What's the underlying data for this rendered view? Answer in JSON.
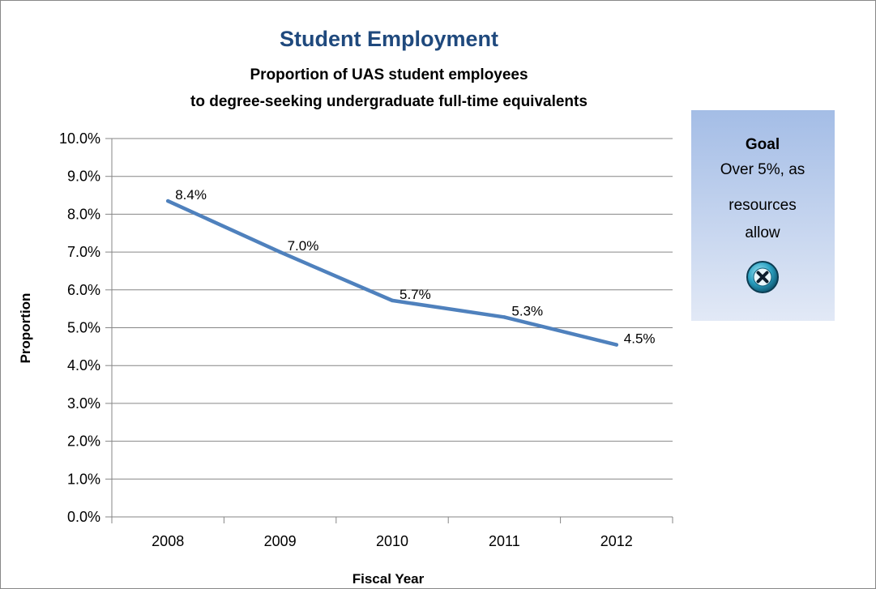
{
  "chart_data": {
    "type": "line",
    "title": "Student Employment",
    "subtitle_lines": [
      "Proportion of UAS student employees",
      "to degree-seeking undergraduate full-time equivalents"
    ],
    "xlabel": "Fiscal Year",
    "ylabel": "Proportion",
    "categories": [
      "2008",
      "2009",
      "2010",
      "2011",
      "2012"
    ],
    "series": [
      {
        "values": [
          8.35,
          7.0,
          5.72,
          5.28,
          4.55
        ],
        "labels": [
          "8.4%",
          "7.0%",
          "5.7%",
          "5.3%",
          "4.5%"
        ],
        "color": "#4f81bd"
      }
    ],
    "ylim": [
      0,
      10
    ],
    "y_ticks": [
      "0.0%",
      "1.0%",
      "2.0%",
      "3.0%",
      "4.0%",
      "5.0%",
      "6.0%",
      "7.0%",
      "8.0%",
      "9.0%",
      "10.0%"
    ],
    "grid": true,
    "legend": "none"
  },
  "goal": {
    "heading": "Goal",
    "lines": [
      "Over 5%, as",
      "resources",
      "allow"
    ],
    "status_icon": "x-circle-icon",
    "box_color_top": "#a4bde6",
    "box_color_bottom": "#e2e9f6"
  }
}
